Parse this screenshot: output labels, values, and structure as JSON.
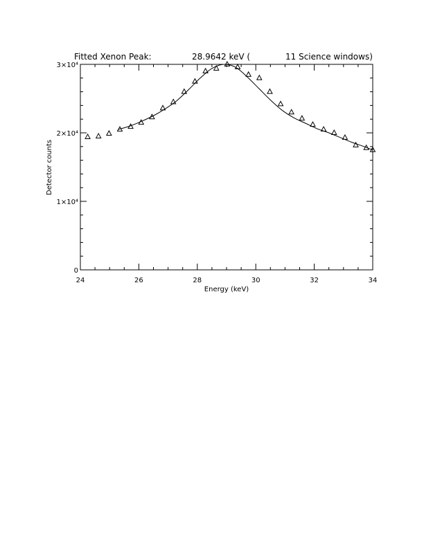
{
  "chart_data": {
    "type": "scatter",
    "title_left": "Fitted Xenon Peak:",
    "title_value": "28.9642 keV (",
    "title_right": "11 Science windows)",
    "xlabel": "Energy (keV)",
    "ylabel": "Detector counts",
    "xlim": [
      24,
      34
    ],
    "ylim": [
      0,
      30000
    ],
    "x_ticks": [
      24,
      26,
      28,
      30,
      32,
      34
    ],
    "y_tick_values": [
      0,
      10000,
      20000,
      30000
    ],
    "y_tick_labels": [
      "0",
      "1×10⁴",
      "2×10⁴",
      "3×10⁴"
    ],
    "grid": false,
    "marker": "triangle",
    "series": [
      {
        "x": [
          24.25,
          24.62,
          24.98,
          25.35,
          25.72,
          26.08,
          26.45,
          26.82,
          27.18,
          27.55,
          27.92,
          28.28,
          28.65,
          29.02,
          29.38,
          29.75,
          30.12,
          30.48,
          30.85,
          31.22,
          31.58,
          31.95,
          32.32,
          32.68,
          33.05,
          33.42,
          33.78,
          34.0
        ],
        "y": [
          19400,
          19500,
          19900,
          20500,
          20900,
          21500,
          22300,
          23600,
          24500,
          26000,
          27500,
          29000,
          29400,
          30000,
          29600,
          28500,
          28000,
          26000,
          24200,
          23000,
          22100,
          21200,
          20500,
          20000,
          19300,
          18200,
          17800,
          17500
        ]
      }
    ],
    "fit": {
      "x": [
        25.3,
        25.7,
        26.1,
        26.5,
        26.9,
        27.3,
        27.7,
        28.1,
        28.5,
        28.9,
        29.3,
        29.7,
        30.1,
        30.5,
        30.9,
        31.3,
        31.7,
        32.1,
        32.5,
        32.9,
        33.3,
        33.7,
        34.0
      ],
      "y": [
        20500,
        21000,
        21700,
        22500,
        23500,
        24700,
        26300,
        28000,
        29400,
        30000,
        29600,
        28200,
        26500,
        24800,
        23300,
        22200,
        21400,
        20600,
        20000,
        19300,
        18600,
        18000,
        17500
      ]
    }
  }
}
